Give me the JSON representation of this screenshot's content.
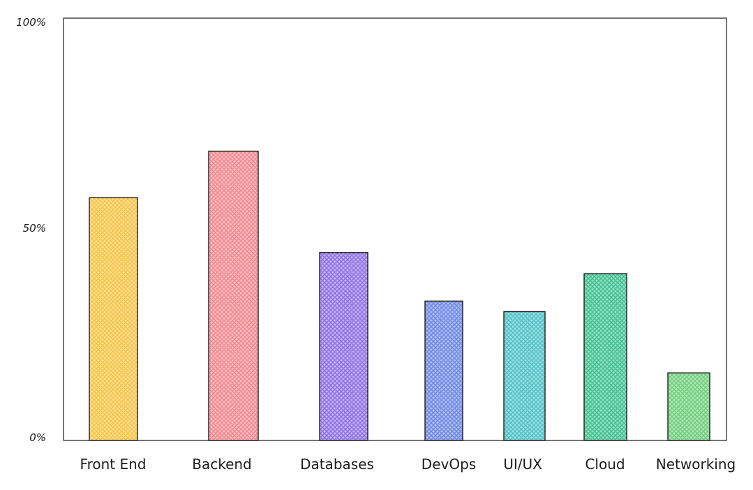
{
  "chart_data": {
    "type": "bar",
    "title": "",
    "xlabel": "",
    "ylabel": "",
    "categories": [
      "Front End",
      "Backend",
      "Databases",
      "DevOps",
      "UI/UX",
      "Cloud",
      "Networking"
    ],
    "values": [
      57.5,
      68.5,
      44.5,
      33,
      30.5,
      39.5,
      16
    ],
    "ylim": [
      0,
      100
    ],
    "yticks": [
      {
        "value": 0,
        "label": "0%"
      },
      {
        "value": 50,
        "label": "50%"
      },
      {
        "value": 100,
        "label": "100%"
      }
    ],
    "grid": false,
    "legend": "none",
    "colors": [
      "#f5c445",
      "#f3888f",
      "#8f6fe6",
      "#6f87e3",
      "#4fc1c7",
      "#3fc08f",
      "#6fcf7b"
    ],
    "stroke_color": "#1e1e1e"
  }
}
